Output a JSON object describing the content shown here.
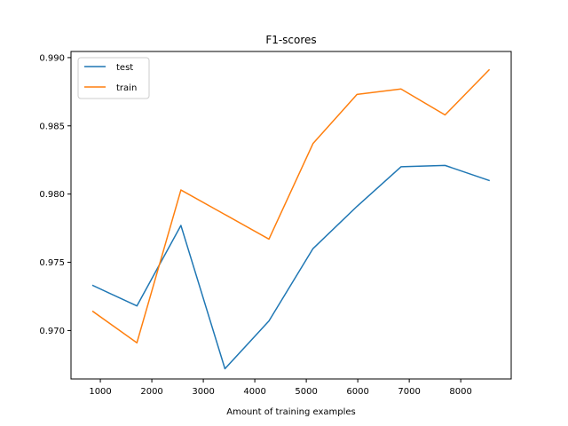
{
  "chart_data": {
    "type": "line",
    "title": "F1-scores",
    "xlabel": "Amount of training examples",
    "ylabel": "",
    "xlim": [
      430,
      8980
    ],
    "ylim": [
      0.96645,
      0.99045
    ],
    "xticks": [
      1000,
      2000,
      3000,
      4000,
      5000,
      6000,
      7000,
      8000
    ],
    "yticks": [
      0.97,
      0.975,
      0.98,
      0.985,
      0.99
    ],
    "grid": false,
    "legend_position": "top-left",
    "x": [
      855,
      1710,
      2565,
      3420,
      4275,
      5130,
      5985,
      6840,
      7695,
      8550
    ],
    "series": [
      {
        "name": "test",
        "color": "#1f77b4",
        "values": [
          0.9733,
          0.9718,
          0.9777,
          0.9672,
          0.9707,
          0.976,
          0.9791,
          0.982,
          0.9821,
          0.981
        ]
      },
      {
        "name": "train",
        "color": "#ff7f0e",
        "values": [
          0.9714,
          0.9691,
          0.9803,
          0.9785,
          0.9767,
          0.9837,
          0.9873,
          0.9877,
          0.9858,
          0.9891
        ]
      }
    ]
  }
}
